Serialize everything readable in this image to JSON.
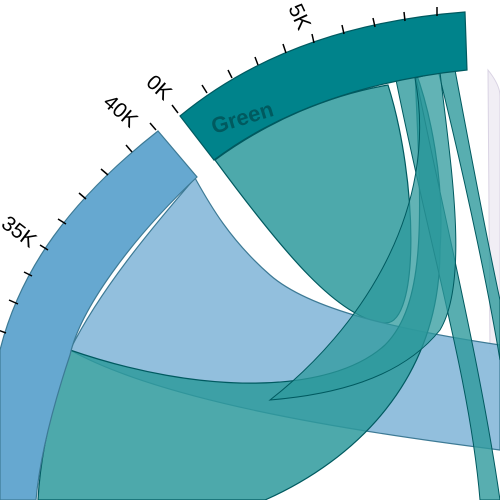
{
  "groups": {
    "green": {
      "label": "Green",
      "color": "#00838b",
      "label_color": "#005a5f"
    },
    "blue": {
      "color": "#66a8d0"
    },
    "lavender": {
      "color": "#d9d3e3"
    }
  },
  "ticks": {
    "green": [
      "0K",
      "5K"
    ],
    "blue": [
      "40K",
      "35K"
    ]
  },
  "ribbons": {
    "green_self_color": "#2e9a9c",
    "blue_to_right_color": "#8cbcdb",
    "green_blue_color": "#2e9a9c",
    "outline_color": "#005a60"
  }
}
